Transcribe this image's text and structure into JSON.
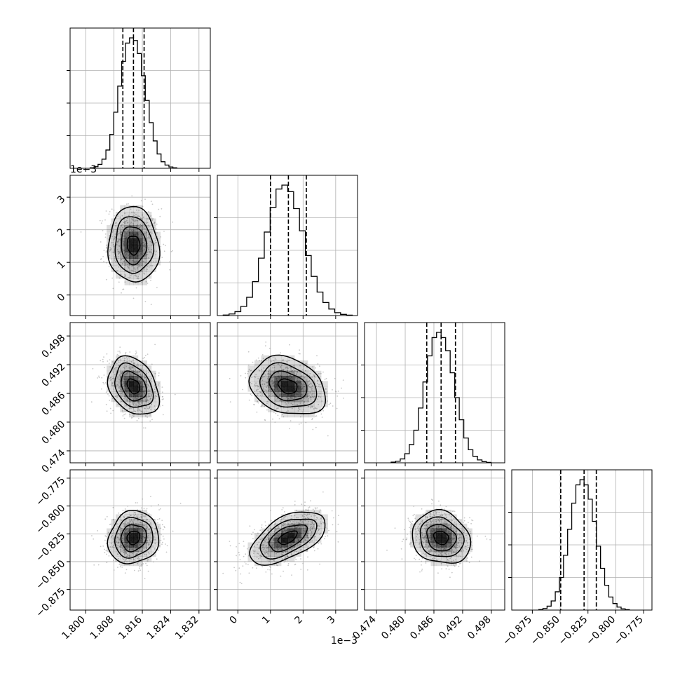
{
  "chart_data": {
    "type": "corner",
    "grid": true,
    "colors": {
      "line": "#000000",
      "grid": "#b0b0b0",
      "density": "#000000",
      "points": "#9a9a9a"
    },
    "params": [
      {
        "range": [
          1.7956,
          1.8352
        ],
        "ticks": [
          1.8,
          1.808,
          1.816,
          1.824,
          1.832
        ],
        "tick_labels": [
          "1.800",
          "1.808",
          "1.816",
          "1.824",
          "1.832"
        ],
        "mean": 1.8135,
        "sd": 0.0034
      },
      {
        "range": [
          -0.00063,
          0.00367
        ],
        "ticks": [
          0.0,
          0.001,
          0.002,
          0.003
        ],
        "tick_labels": [
          "0",
          "1",
          "2",
          "3"
        ],
        "offset_text": "1e−3",
        "mean": 0.00153,
        "sd": 0.00055
      },
      {
        "range": [
          0.4715,
          0.5008
        ],
        "ticks": [
          0.474,
          0.48,
          0.486,
          0.492,
          0.498
        ],
        "tick_labels": [
          "0.474",
          "0.480",
          "0.486",
          "0.492",
          "0.498"
        ],
        "mean": 0.4875,
        "sd": 0.0029
      },
      {
        "range": [
          -0.8935,
          -0.7675
        ],
        "ticks": [
          -0.875,
          -0.85,
          -0.825,
          -0.8,
          -0.775
        ],
        "tick_labels": [
          "−0.875",
          "−0.850",
          "−0.825",
          "−0.800",
          "−0.775"
        ],
        "mean": -0.8285,
        "sd": 0.0113
      }
    ],
    "quantile_lines": [
      [
        1.8105,
        1.8135,
        1.8165
      ],
      [
        0.001,
        0.00155,
        0.0021
      ],
      [
        0.4845,
        0.4875,
        0.4905
      ],
      [
        -0.8495,
        -0.8285,
        -0.8175
      ]
    ],
    "histograms": [
      [
        0.004,
        0.012,
        0.03,
        0.07,
        0.14,
        0.26,
        0.43,
        0.63,
        0.82,
        0.96,
        1.0,
        0.98,
        0.88,
        0.71,
        0.52,
        0.35,
        0.21,
        0.11,
        0.05,
        0.025,
        0.01,
        0.004
      ],
      [
        0.004,
        0.012,
        0.03,
        0.07,
        0.14,
        0.26,
        0.44,
        0.64,
        0.83,
        0.97,
        1.0,
        0.95,
        0.82,
        0.65,
        0.46,
        0.3,
        0.18,
        0.1,
        0.05,
        0.022,
        0.009,
        0.003
      ],
      [
        0.005,
        0.012,
        0.03,
        0.07,
        0.14,
        0.25,
        0.42,
        0.62,
        0.82,
        0.96,
        1.0,
        0.96,
        0.86,
        0.69,
        0.5,
        0.33,
        0.19,
        0.1,
        0.05,
        0.022,
        0.009,
        0.003
      ],
      [
        0.004,
        0.012,
        0.03,
        0.07,
        0.14,
        0.25,
        0.42,
        0.62,
        0.82,
        0.96,
        1.0,
        0.96,
        0.85,
        0.68,
        0.49,
        0.32,
        0.19,
        0.1,
        0.05,
        0.023,
        0.009,
        0.003
      ]
    ],
    "correlations": {
      "1-0": -0.05,
      "2-0": -0.3,
      "2-1": -0.25,
      "3-0": 0.1,
      "3-1": 0.55,
      "3-2": -0.15
    },
    "contour_levels_sigma": [
      0.5,
      1.0,
      1.5,
      2.0
    ]
  }
}
